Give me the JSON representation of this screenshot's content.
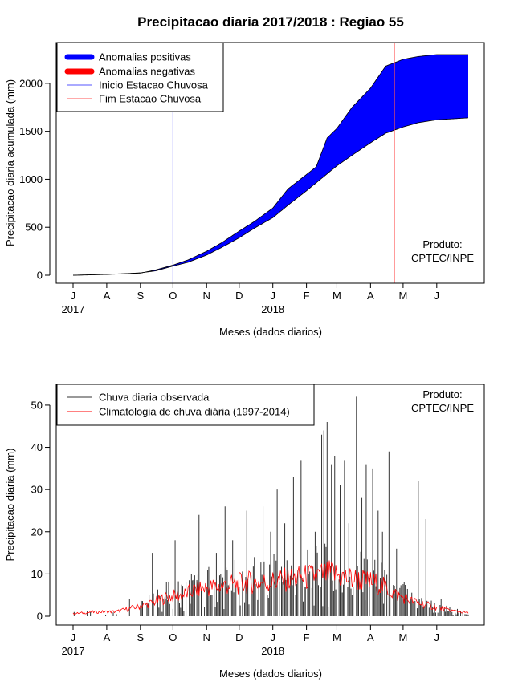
{
  "page": {
    "title": "Precipitacao diaria 2017/2018 : Regiao 55"
  },
  "months": [
    "J",
    "A",
    "S",
    "O",
    "N",
    "D",
    "J",
    "F",
    "M",
    "A",
    "M",
    "J"
  ],
  "years": [
    "2017",
    "2018"
  ],
  "chart_data": [
    {
      "type": "area",
      "xlabel": "Meses (dados diarios)",
      "ylabel": "Precipitacao diaria acumulada (mm)",
      "x_start": "2017-07-01",
      "x_end": "2018-06-30",
      "ylim": [
        0,
        2300
      ],
      "yticks": [
        0,
        500,
        1000,
        1500,
        2000
      ],
      "legend_position": "top-left",
      "legend": [
        {
          "label": "Anomalias positivas",
          "color": "#0000ff"
        },
        {
          "label": "Anomalias negativas",
          "color": "#ff0000"
        },
        {
          "label": "Inicio Estacao Chuvosa",
          "color": "#5555ff"
        },
        {
          "label": "Fim Estacao Chuvosa",
          "color": "#ff5555"
        }
      ],
      "annotation": [
        "Produto:",
        "CPTEC/INPE"
      ],
      "rainy_season_start": "2017-10-01",
      "rainy_season_end": "2018-04-23",
      "series": [
        {
          "name": "observed_accumulated",
          "points": [
            [
              "2017-07-01",
              0
            ],
            [
              "2017-07-15",
              3
            ],
            [
              "2017-08-01",
              8
            ],
            [
              "2017-08-15",
              14
            ],
            [
              "2017-09-01",
              22
            ],
            [
              "2017-09-15",
              55
            ],
            [
              "2017-10-01",
              105
            ],
            [
              "2017-10-15",
              160
            ],
            [
              "2017-11-01",
              250
            ],
            [
              "2017-11-15",
              340
            ],
            [
              "2017-12-01",
              460
            ],
            [
              "2017-12-15",
              560
            ],
            [
              "2018-01-01",
              700
            ],
            [
              "2018-01-15",
              900
            ],
            [
              "2018-02-01",
              1050
            ],
            [
              "2018-02-10",
              1130
            ],
            [
              "2018-02-20",
              1430
            ],
            [
              "2018-03-01",
              1530
            ],
            [
              "2018-03-15",
              1750
            ],
            [
              "2018-04-01",
              1950
            ],
            [
              "2018-04-15",
              2180
            ],
            [
              "2018-05-01",
              2250
            ],
            [
              "2018-05-15",
              2280
            ],
            [
              "2018-06-01",
              2300
            ],
            [
              "2018-06-30",
              2300
            ]
          ]
        },
        {
          "name": "climatology_accumulated",
          "points": [
            [
              "2017-07-01",
              0
            ],
            [
              "2017-07-15",
              4
            ],
            [
              "2017-08-01",
              10
            ],
            [
              "2017-08-15",
              15
            ],
            [
              "2017-09-01",
              25
            ],
            [
              "2017-09-15",
              45
            ],
            [
              "2017-10-01",
              95
            ],
            [
              "2017-10-15",
              135
            ],
            [
              "2017-11-01",
              210
            ],
            [
              "2017-11-15",
              290
            ],
            [
              "2017-12-01",
              390
            ],
            [
              "2017-12-15",
              490
            ],
            [
              "2018-01-01",
              600
            ],
            [
              "2018-01-15",
              730
            ],
            [
              "2018-02-01",
              880
            ],
            [
              "2018-02-15",
              1010
            ],
            [
              "2018-03-01",
              1140
            ],
            [
              "2018-03-15",
              1250
            ],
            [
              "2018-04-01",
              1380
            ],
            [
              "2018-04-15",
              1480
            ],
            [
              "2018-05-01",
              1545
            ],
            [
              "2018-05-15",
              1590
            ],
            [
              "2018-06-01",
              1620
            ],
            [
              "2018-06-30",
              1640
            ]
          ]
        }
      ]
    },
    {
      "type": "bar",
      "xlabel": "Meses (dados diarios)",
      "ylabel": "Precipitacao diaria (mm)",
      "x_start": "2017-07-01",
      "x_end": "2018-06-30",
      "ylim": [
        0,
        52
      ],
      "yticks": [
        0,
        10,
        20,
        30,
        40,
        50
      ],
      "legend_position": "top-left",
      "legend": [
        {
          "label": "Chuva diaria observada",
          "color": "#333333"
        },
        {
          "label": "Climatologia de chuva diária (1997-2014)",
          "color": "#ff0000"
        }
      ],
      "annotation": [
        "Produto:",
        "CPTEC/INPE"
      ],
      "series": [
        {
          "name": "Chuva diaria observada",
          "peaks": [
            [
              "2017-07-02",
              1
            ],
            [
              "2017-08-10",
              0.5
            ],
            [
              "2017-08-22",
              4
            ],
            [
              "2017-09-01",
              2
            ],
            [
              "2017-09-08",
              3
            ],
            [
              "2017-09-12",
              15
            ],
            [
              "2017-09-25",
              8
            ],
            [
              "2017-10-03",
              18
            ],
            [
              "2017-10-08",
              2
            ],
            [
              "2017-10-18",
              10
            ],
            [
              "2017-10-25",
              24
            ],
            [
              "2017-11-05",
              5
            ],
            [
              "2017-11-10",
              15
            ],
            [
              "2017-11-18",
              26
            ],
            [
              "2017-11-25",
              18
            ],
            [
              "2017-12-01",
              7
            ],
            [
              "2017-12-08",
              25
            ],
            [
              "2017-12-15",
              14
            ],
            [
              "2017-12-23",
              26
            ],
            [
              "2017-12-30",
              20
            ],
            [
              "2018-01-05",
              30
            ],
            [
              "2018-01-12",
              22
            ],
            [
              "2018-01-20",
              33
            ],
            [
              "2018-01-27",
              37
            ],
            [
              "2018-02-03",
              10
            ],
            [
              "2018-02-09",
              20
            ],
            [
              "2018-02-15",
              43
            ],
            [
              "2018-02-17",
              44
            ],
            [
              "2018-02-20",
              46
            ],
            [
              "2018-02-24",
              36
            ],
            [
              "2018-02-27",
              38
            ],
            [
              "2018-03-04",
              31
            ],
            [
              "2018-03-08",
              37
            ],
            [
              "2018-03-12",
              22
            ],
            [
              "2018-03-19",
              52
            ],
            [
              "2018-03-24",
              28
            ],
            [
              "2018-03-28",
              36
            ],
            [
              "2018-04-03",
              35
            ],
            [
              "2018-04-08",
              25
            ],
            [
              "2018-04-12",
              20
            ],
            [
              "2018-04-18",
              39
            ],
            [
              "2018-04-25",
              16
            ],
            [
              "2018-05-02",
              8
            ],
            [
              "2018-05-08",
              4
            ],
            [
              "2018-05-15",
              32
            ],
            [
              "2018-05-22",
              23
            ],
            [
              "2018-06-05",
              4
            ],
            [
              "2018-06-15",
              1
            ]
          ]
        },
        {
          "name": "Climatologia de chuva diária (1997-2014)",
          "points": [
            [
              "2017-07-01",
              0.6
            ],
            [
              "2017-07-20",
              1.0
            ],
            [
              "2017-08-10",
              1.1
            ],
            [
              "2017-08-25",
              2.0
            ],
            [
              "2017-09-10",
              3.0
            ],
            [
              "2017-09-25",
              4.5
            ],
            [
              "2017-10-10",
              5.0
            ],
            [
              "2017-10-25",
              6.5
            ],
            [
              "2017-11-10",
              7.0
            ],
            [
              "2017-11-25",
              7.5
            ],
            [
              "2017-12-10",
              8.0
            ],
            [
              "2017-12-25",
              8.0
            ],
            [
              "2018-01-10",
              8.5
            ],
            [
              "2018-01-25",
              9.0
            ],
            [
              "2018-02-10",
              9.5
            ],
            [
              "2018-02-25",
              10.0
            ],
            [
              "2018-03-10",
              9.0
            ],
            [
              "2018-03-25",
              8.5
            ],
            [
              "2018-04-10",
              7.5
            ],
            [
              "2018-04-25",
              5.0
            ],
            [
              "2018-05-10",
              3.5
            ],
            [
              "2018-05-25",
              2.5
            ],
            [
              "2018-06-10",
              1.5
            ],
            [
              "2018-06-30",
              0.8
            ]
          ]
        }
      ]
    }
  ]
}
